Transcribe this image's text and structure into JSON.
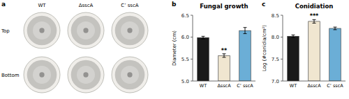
{
  "chart_data": [
    {
      "type": "image",
      "panel_label": "a",
      "categories": [
        "WT",
        "ΔsscA",
        "C’ sscA"
      ],
      "rows": [
        "Top",
        "Bottom"
      ],
      "color": "#f0eeea"
    },
    {
      "type": "bar",
      "panel_label": "b",
      "title": "Fungal growth",
      "ylabel": "Diameter (cm)",
      "categories": [
        "WT",
        "ΔsscA",
        "C’ sscA"
      ],
      "values": [
        5.99,
        5.58,
        6.15
      ],
      "errors": [
        0.03,
        0.04,
        0.07
      ],
      "colors": [
        "#1a1a1a",
        "#f0e6d0",
        "#6baed6"
      ],
      "ylim": [
        5.0,
        6.5
      ],
      "yticks": [
        {
          "value": 5.0,
          "label": "5.0"
        },
        5.5,
        {
          "value": 6.0,
          "label": "6.0"
        },
        6.5
      ],
      "annotations": [
        {
          "text": "**",
          "category": "ΔsscA"
        }
      ]
    },
    {
      "type": "bar",
      "panel_label": "c",
      "title": "Conidiation",
      "ylabel": "Log (#conidia/cm²)",
      "categories": [
        "WT",
        "ΔsscA",
        "C’ sscA"
      ],
      "values": [
        8.02,
        8.36,
        8.2
      ],
      "errors": [
        0.03,
        0.04,
        0.03
      ],
      "colors": [
        "#1a1a1a",
        "#f0e6d0",
        "#6baed6"
      ],
      "ylim": [
        7.0,
        8.5
      ],
      "yticks": [
        {
          "value": 7.0,
          "label": "7.0"
        },
        7.5,
        {
          "value": 8.0,
          "label": "8.0"
        },
        8.5
      ],
      "annotations": [
        {
          "text": "***",
          "category": "ΔsscA"
        }
      ]
    }
  ]
}
